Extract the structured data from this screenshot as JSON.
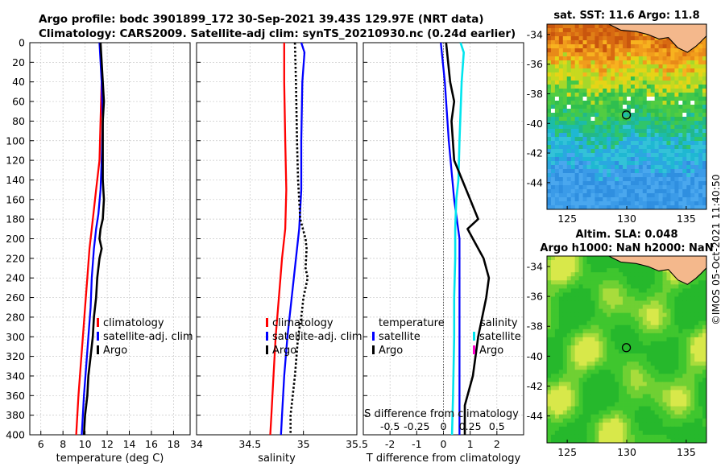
{
  "header": {
    "line1": "Argo profile: bodc 3901899_172 30-Sep-2021 39.43S 129.97E (NRT data)",
    "line2": "Climatology: CARS2009. Satellite-adj clim: synTS_20210930.nc (0.24d earlier)"
  },
  "stamp": "©IMOS 05-Oct-2021 11:40:50",
  "colors": {
    "climatology": "#ff0000",
    "satellite": "#0000ff",
    "argo": "#000000",
    "salinity_satellite": "#00e5ee",
    "salinity_argo": "#ff00cc"
  },
  "chart_data": [
    {
      "type": "line",
      "name": "temperature profile",
      "xlabel": "temperature (deg C)",
      "xlim": [
        5,
        19.5
      ],
      "xticks": [
        "6",
        "8",
        "10",
        "12",
        "14",
        "16",
        "18"
      ],
      "ylim": [
        0,
        400
      ],
      "yticks": [
        "0",
        "20",
        "40",
        "60",
        "80",
        "100",
        "120",
        "140",
        "160",
        "180",
        "200",
        "220",
        "240",
        "260",
        "280",
        "300",
        "320",
        "340",
        "360",
        "380",
        "400"
      ],
      "grid": true,
      "legend": [
        "climatology",
        "satellite-adj. clim",
        "Argo"
      ],
      "series": [
        {
          "name": "climatology",
          "depth": [
            0,
            40,
            80,
            120,
            150,
            170,
            190,
            210,
            240,
            270,
            300,
            330,
            360,
            400
          ],
          "values": [
            11.4,
            11.5,
            11.4,
            11.3,
            11.0,
            10.8,
            10.6,
            10.4,
            10.2,
            10.0,
            9.8,
            9.6,
            9.4,
            9.2
          ]
        },
        {
          "name": "satellite-adj. clim",
          "depth": [
            0,
            40,
            80,
            120,
            150,
            175,
            190,
            200,
            210,
            240,
            270,
            300,
            330,
            360,
            400
          ],
          "values": [
            11.3,
            11.5,
            11.6,
            11.5,
            11.4,
            11.2,
            11.0,
            10.9,
            10.8,
            10.6,
            10.5,
            10.3,
            10.1,
            9.9,
            9.7
          ]
        },
        {
          "name": "Argo",
          "depth": [
            0,
            20,
            40,
            60,
            80,
            100,
            120,
            140,
            160,
            180,
            190,
            200,
            210,
            220,
            240,
            260,
            280,
            300,
            320,
            340,
            360,
            380,
            400
          ],
          "values": [
            11.4,
            11.5,
            11.6,
            11.7,
            11.6,
            11.6,
            11.6,
            11.6,
            11.7,
            11.6,
            11.4,
            11.3,
            11.5,
            11.3,
            11.1,
            11.0,
            10.8,
            10.7,
            10.5,
            10.3,
            10.2,
            10.0,
            9.9
          ]
        }
      ]
    },
    {
      "type": "line",
      "name": "salinity profile",
      "xlabel": "salinity",
      "xlim": [
        34,
        35.5
      ],
      "xticks": [
        "34",
        "34.5",
        "35",
        "35.5"
      ],
      "ylim": [
        0,
        400
      ],
      "grid": true,
      "legend": [
        "climatology",
        "satellite-adj. clim",
        "Argo"
      ],
      "series": [
        {
          "name": "climatology",
          "depth": [
            0,
            40,
            100,
            150,
            190,
            220,
            260,
            300,
            340,
            380,
            400
          ],
          "values": [
            34.82,
            34.82,
            34.83,
            34.84,
            34.83,
            34.8,
            34.77,
            34.74,
            34.72,
            34.7,
            34.69
          ]
        },
        {
          "name": "satellite-adj. clim",
          "depth": [
            0,
            10,
            40,
            100,
            150,
            190,
            220,
            260,
            300,
            340,
            380,
            400
          ],
          "values": [
            34.98,
            35.01,
            34.99,
            34.98,
            34.98,
            34.96,
            34.93,
            34.89,
            34.85,
            34.82,
            34.8,
            34.79
          ]
        },
        {
          "name": "Argo",
          "depth": [
            0,
            40,
            100,
            140,
            180,
            200,
            210,
            230,
            240,
            260,
            280,
            300,
            340,
            380,
            400
          ],
          "values": [
            34.92,
            34.93,
            34.94,
            34.95,
            34.97,
            35.02,
            35.03,
            35.02,
            35.04,
            35.0,
            34.98,
            34.95,
            34.92,
            34.88,
            34.88
          ]
        }
      ]
    },
    {
      "type": "line",
      "name": "difference from climatology",
      "xlabel": "T difference from climatology",
      "xlim": [
        -3,
        3
      ],
      "xticks": [
        "-2",
        "-1",
        "0",
        "1",
        "2"
      ],
      "top_label": "S difference from climatology",
      "top_ticks": [
        "-0.5",
        "-0.25",
        "0",
        "0.25",
        "0.5"
      ],
      "ylim": [
        0,
        400
      ],
      "grid": true,
      "legend_temperature_title": "temperature",
      "legend_salinity_title": "salinity",
      "legend_temperature": [
        "satellite",
        "Argo"
      ],
      "legend_salinity": [
        "satellite",
        "Argo"
      ],
      "series": [
        {
          "name": "T satellite",
          "depth": [
            0,
            40,
            100,
            160,
            200,
            250,
            300,
            350,
            400
          ],
          "values": [
            -0.1,
            0.05,
            0.2,
            0.4,
            0.6,
            0.6,
            0.6,
            0.6,
            0.6
          ]
        },
        {
          "name": "S satellite",
          "depth": [
            0,
            10,
            40,
            100,
            140,
            160,
            190,
            220,
            260,
            300,
            360,
            400
          ],
          "values": [
            0.16,
            0.19,
            0.17,
            0.15,
            0.14,
            0.12,
            0.11,
            0.11,
            0.1,
            0.1,
            0.09,
            0.08
          ]
        },
        {
          "name": "T Argo",
          "depth": [
            0,
            40,
            60,
            80,
            120,
            160,
            180,
            190,
            200,
            220,
            240,
            260,
            300,
            340,
            370,
            400
          ],
          "values": [
            0.1,
            0.25,
            0.4,
            0.3,
            0.4,
            1.0,
            1.3,
            0.9,
            1.1,
            1.5,
            1.7,
            1.6,
            1.3,
            1.1,
            0.8,
            0.8
          ]
        }
      ]
    },
    {
      "type": "heatmap",
      "name": "sat SST map",
      "title": "sat. SST: 11.6 Argo: 11.8",
      "xlim": [
        123.3,
        136.7
      ],
      "ylim": [
        -45.8,
        -33.3
      ],
      "xticks": [
        "125",
        "130",
        "135"
      ],
      "yticks": [
        "-34",
        "-36",
        "-38",
        "-40",
        "-42",
        "-44"
      ],
      "marker": {
        "lon": 129.97,
        "lat": -39.43
      }
    },
    {
      "type": "heatmap",
      "name": "altimetry SLA map",
      "title": "Altim. SLA: 0.048",
      "subtitle": "Argo h1000: NaN h2000: NaN",
      "xlim": [
        123.3,
        136.7
      ],
      "ylim": [
        -45.8,
        -33.3
      ],
      "xticks": [
        "125",
        "130",
        "135"
      ],
      "yticks": [
        "-34",
        "-36",
        "-38",
        "-40",
        "-42",
        "-44"
      ],
      "marker": {
        "lon": 129.97,
        "lat": -39.43
      }
    }
  ]
}
